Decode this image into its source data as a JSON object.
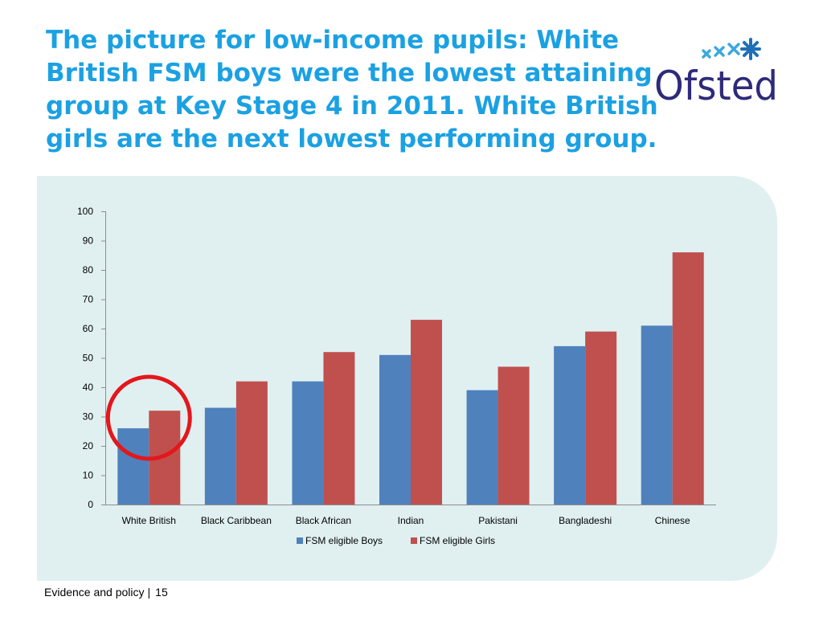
{
  "slide": {
    "title_lines": [
      "The picture for low-income pupils: White",
      "British FSM boys were the lowest attaining",
      "group at Key Stage 4 in 2011. White British",
      "girls are the next lowest performing group."
    ],
    "footer_text": "Evidence and policy",
    "footer_separator": "|",
    "page_number": "15",
    "logo_text": "Ofsted"
  },
  "colors": {
    "title": "#1BA1E2",
    "panel": "#E0F0F1",
    "boys": "#4F81BD",
    "girls": "#C0504D",
    "highlight_circle": "#E3171C",
    "logo_text": "#2E2A7A",
    "logo_stars_light": "#3AA8DD",
    "logo_stars_dark": "#1E6FB6"
  },
  "chart_data": {
    "type": "bar",
    "categories": [
      "White British",
      "Black Caribbean",
      "Black African",
      "Indian",
      "Pakistani",
      "Bangladeshi",
      "Chinese"
    ],
    "series": [
      {
        "name": "FSM eligible Boys",
        "values": [
          26,
          33,
          42,
          51,
          39,
          54,
          61
        ]
      },
      {
        "name": "FSM eligible Girls",
        "values": [
          32,
          42,
          52,
          63,
          47,
          59,
          86
        ]
      }
    ],
    "ylim": [
      0,
      100
    ],
    "yticks": [
      "0",
      "10",
      "20",
      "30",
      "40",
      "50",
      "60",
      "70",
      "80",
      "90",
      "100"
    ],
    "grid": false,
    "legend_position": "bottom",
    "highlighted_category": "White British"
  }
}
